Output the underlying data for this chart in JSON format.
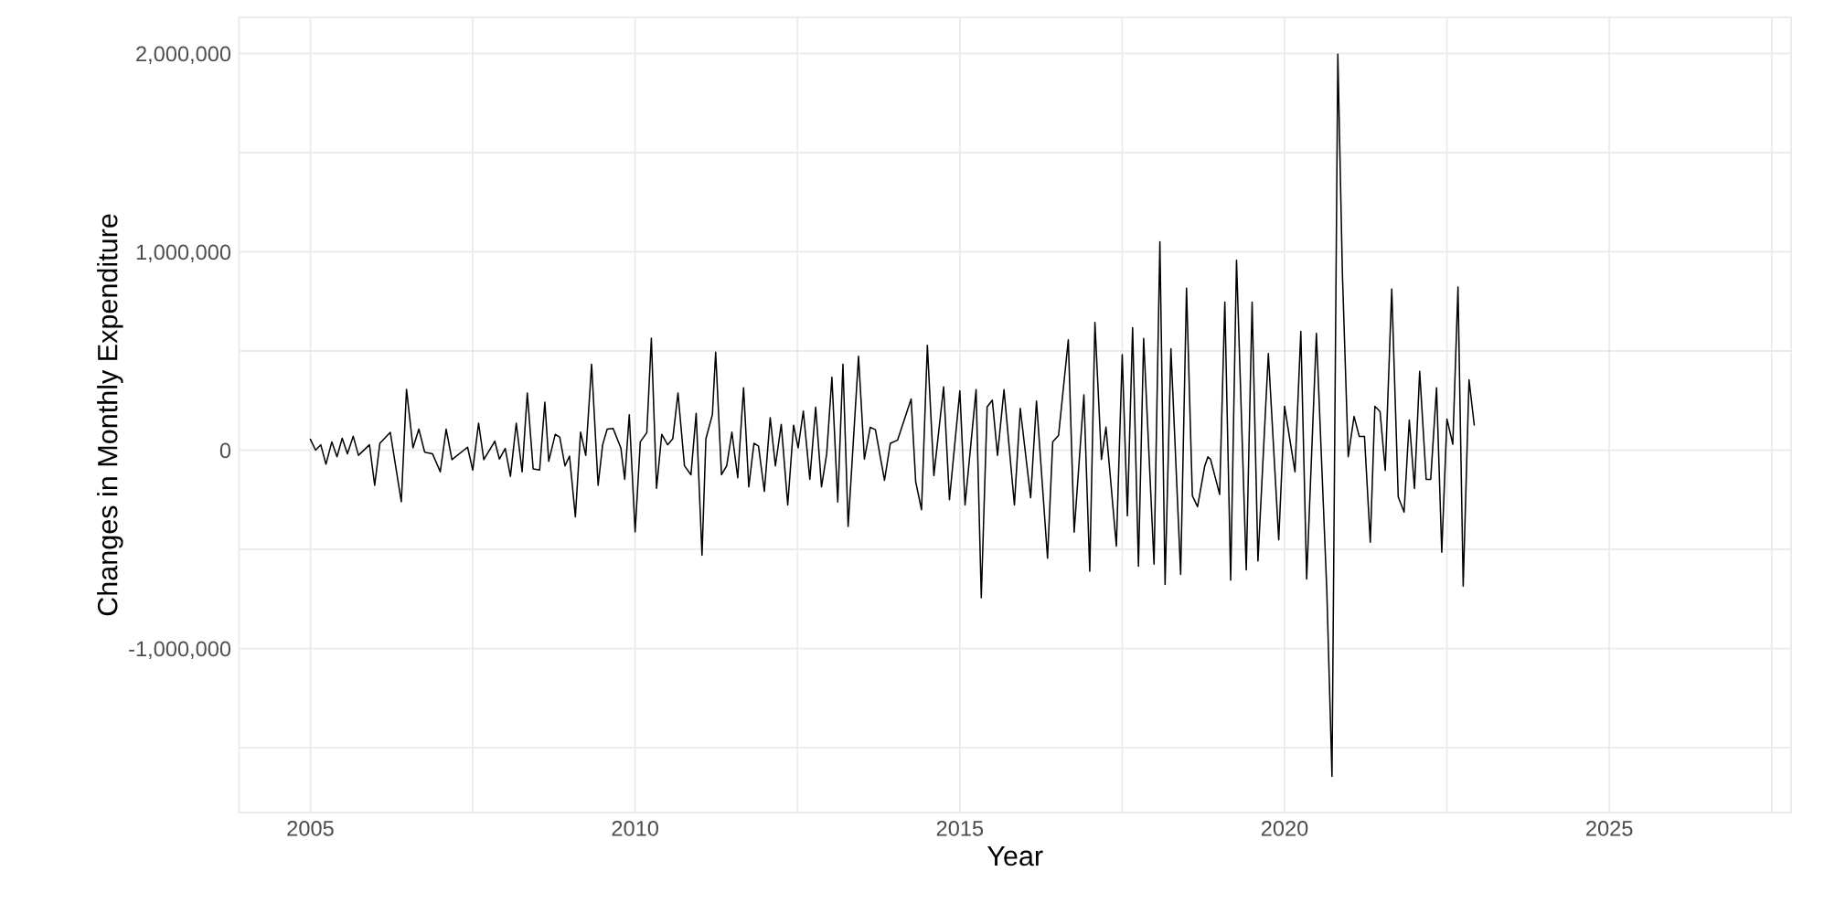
{
  "chart_data": {
    "type": "line",
    "xlabel": "Year",
    "ylabel": "Changes in Monthly Expenditure",
    "xlim": [
      2003.9,
      2027.8
    ],
    "ylim": [
      -1827000,
      2182000
    ],
    "xticks": [
      2005,
      {
        "value": 2007.5,
        "label": null
      },
      2010,
      {
        "value": 2012.5,
        "label": null
      },
      2015,
      {
        "value": 2017.5,
        "label": null
      },
      2020,
      {
        "value": 2022.5,
        "label": null
      },
      2025,
      {
        "value": 2027.5,
        "label": null
      }
    ],
    "yticks": [
      {
        "value": -1500000,
        "label": null
      },
      {
        "value": -1000000,
        "label": "-1,000,000"
      },
      {
        "value": -500000,
        "label": null
      },
      0,
      {
        "value": 500000,
        "label": null
      },
      {
        "value": 1000000,
        "label": "1,000,000"
      },
      {
        "value": 1500000,
        "label": null
      },
      {
        "value": 2000000,
        "label": "2,000,000"
      }
    ],
    "grid": true,
    "marker": "none",
    "line_style": "solid",
    "series": [
      {
        "color": "#000000",
        "x": [
          2005.0,
          2005.08,
          2005.16,
          2005.24,
          2005.33,
          2005.41,
          2005.49,
          2005.57,
          2005.66,
          2005.74,
          2005.91,
          2005.99,
          2006.07,
          2006.23,
          2006.4,
          2006.48,
          2006.58,
          2006.67,
          2006.76,
          2006.88,
          2007.0,
          2007.09,
          2007.18,
          2007.42,
          2007.5,
          2007.59,
          2007.67,
          2007.84,
          2007.91,
          2008.0,
          2008.08,
          2008.17,
          2008.26,
          2008.34,
          2008.43,
          2008.53,
          2008.61,
          2008.67,
          2008.77,
          2008.84,
          2008.92,
          2008.99,
          2009.08,
          2009.16,
          2009.24,
          2009.33,
          2009.43,
          2009.5,
          2009.57,
          2009.66,
          2009.78,
          2009.84,
          2009.91,
          2010.0,
          2010.08,
          2010.18,
          2010.25,
          2010.33,
          2010.41,
          2010.5,
          2010.58,
          2010.66,
          2010.76,
          2010.86,
          2010.94,
          2011.03,
          2011.09,
          2011.19,
          2011.24,
          2011.33,
          2011.41,
          2011.49,
          2011.58,
          2011.67,
          2011.75,
          2011.83,
          2011.9,
          2011.99,
          2012.08,
          2012.16,
          2012.25,
          2012.35,
          2012.44,
          2012.51,
          2012.59,
          2012.69,
          2012.78,
          2012.87,
          2012.95,
          2013.03,
          2013.12,
          2013.2,
          2013.28,
          2013.44,
          2013.53,
          2013.62,
          2013.7,
          2013.84,
          2013.93,
          2014.04,
          2014.25,
          2014.32,
          2014.41,
          2014.5,
          2014.6,
          2014.75,
          2014.84,
          2015.0,
          2015.08,
          2015.25,
          2015.33,
          2015.42,
          2015.5,
          2015.58,
          2015.68,
          2015.84,
          2015.93,
          2016.09,
          2016.18,
          2016.35,
          2016.43,
          2016.52,
          2016.67,
          2016.76,
          2016.91,
          2017.0,
          2017.08,
          2017.18,
          2017.25,
          2017.41,
          2017.5,
          2017.58,
          2017.66,
          2017.75,
          2017.83,
          2017.99,
          2018.08,
          2018.16,
          2018.25,
          2018.4,
          2018.49,
          2018.58,
          2018.66,
          2018.77,
          2018.82,
          2018.86,
          2019.0,
          2019.08,
          2019.17,
          2019.26,
          2019.41,
          2019.5,
          2019.59,
          2019.75,
          2019.91,
          2020.0,
          2020.16,
          2020.25,
          2020.34,
          2020.49,
          2020.65,
          2020.73,
          2020.82,
          2020.89,
          2020.98,
          2021.07,
          2021.15,
          2021.23,
          2021.32,
          2021.39,
          2021.47,
          2021.55,
          2021.65,
          2021.75,
          2021.84,
          2021.92,
          2022.0,
          2022.08,
          2022.18,
          2022.25,
          2022.34,
          2022.42,
          2022.5,
          2022.59,
          2022.67,
          2022.75,
          2022.84,
          2022.92
        ],
        "values": [
          55000,
          0,
          27000,
          -71000,
          42000,
          -33000,
          60000,
          -18000,
          70000,
          -26000,
          27000,
          -177000,
          35000,
          90000,
          -260000,
          307000,
          12000,
          106000,
          -10000,
          -18000,
          -109000,
          106000,
          -48000,
          15000,
          -100000,
          136000,
          -48000,
          45000,
          -45000,
          9000,
          -132000,
          136000,
          -109000,
          288000,
          -94000,
          -100000,
          242000,
          -56000,
          80000,
          65000,
          -79000,
          -30000,
          -336000,
          91000,
          -26000,
          433000,
          -177000,
          27000,
          106000,
          110000,
          12000,
          -147000,
          179000,
          -412000,
          42000,
          88000,
          565000,
          -192000,
          80000,
          27000,
          58000,
          288000,
          -79000,
          -124000,
          186000,
          -530000,
          58000,
          179000,
          494000,
          -124000,
          -79000,
          91000,
          -139000,
          315000,
          -185000,
          35000,
          20000,
          -208000,
          164000,
          -79000,
          130000,
          -276000,
          126000,
          12000,
          197000,
          -147000,
          217000,
          -185000,
          -18000,
          368000,
          -261000,
          433000,
          -385000,
          474000,
          -45000,
          115000,
          103000,
          -152000,
          35000,
          50000,
          258000,
          -159000,
          -301000,
          529000,
          -128000,
          319000,
          -250000,
          299000,
          -276000,
          305000,
          -744000,
          218000,
          252000,
          -26000,
          305000,
          -276000,
          211000,
          -240000,
          248000,
          -545000,
          41000,
          75000,
          557000,
          -413000,
          279000,
          -610000,
          644000,
          -47000,
          116000,
          -484000,
          482000,
          -331000,
          618000,
          -585000,
          563000,
          -575000,
          1051000,
          -677000,
          512000,
          -626000,
          817000,
          -230000,
          -285000,
          -81000,
          -33000,
          -46000,
          -223000,
          746000,
          -655000,
          957000,
          -604000,
          746000,
          -558000,
          487000,
          -452000,
          221000,
          -109000,
          599000,
          -650000,
          589000,
          -706000,
          -1645000,
          1997000,
          893000,
          -33000,
          170000,
          69000,
          69000,
          -464000,
          221000,
          195000,
          -102000,
          812000,
          -236000,
          -312000,
          152000,
          -193000,
          398000,
          -147000,
          -147000,
          315000,
          -515000,
          157000,
          30000,
          822000,
          -685000,
          355000,
          127000
        ]
      }
    ]
  }
}
